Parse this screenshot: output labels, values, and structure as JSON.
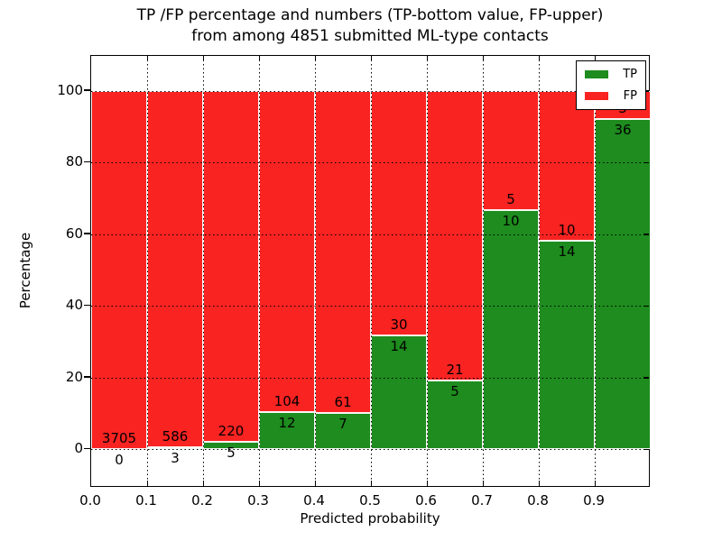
{
  "chart_data": {
    "type": "bar",
    "stacked": true,
    "title_line1": "TP /FP percentage and numbers (TP-bottom value, FP-upper)",
    "title_line2": "from among 4851 submitted ML-type contacts",
    "xlabel": "Predicted probability",
    "ylabel": "Percentage",
    "x_tick_labels": [
      "0.0",
      "0.1",
      "0.2",
      "0.3",
      "0.4",
      "0.5",
      "0.6",
      "0.7",
      "0.8",
      "0.9"
    ],
    "y_ticks": [
      0,
      20,
      40,
      60,
      80,
      100
    ],
    "xlim": [
      0.0,
      1.0
    ],
    "ylim": [
      -10.7,
      109.8
    ],
    "grid": true,
    "bin_width": 0.1,
    "total_contacts": 4851,
    "legend_position": "upper right",
    "series": [
      {
        "name": "TP",
        "color": "#1e8c1e",
        "counts": [
          0,
          3,
          5,
          12,
          7,
          14,
          5,
          10,
          14,
          36
        ],
        "pct": [
          0.0,
          0.51,
          2.22,
          10.34,
          10.29,
          31.82,
          19.23,
          66.67,
          58.33,
          92.31
        ]
      },
      {
        "name": "FP",
        "color": "#f92321",
        "counts": [
          3705,
          586,
          220,
          104,
          61,
          30,
          21,
          5,
          10,
          3
        ],
        "pct": [
          100.0,
          99.49,
          97.78,
          89.66,
          89.71,
          68.18,
          80.77,
          33.33,
          41.67,
          7.69
        ]
      }
    ],
    "annotation_note": "TP-bottom value, FP-upper"
  }
}
